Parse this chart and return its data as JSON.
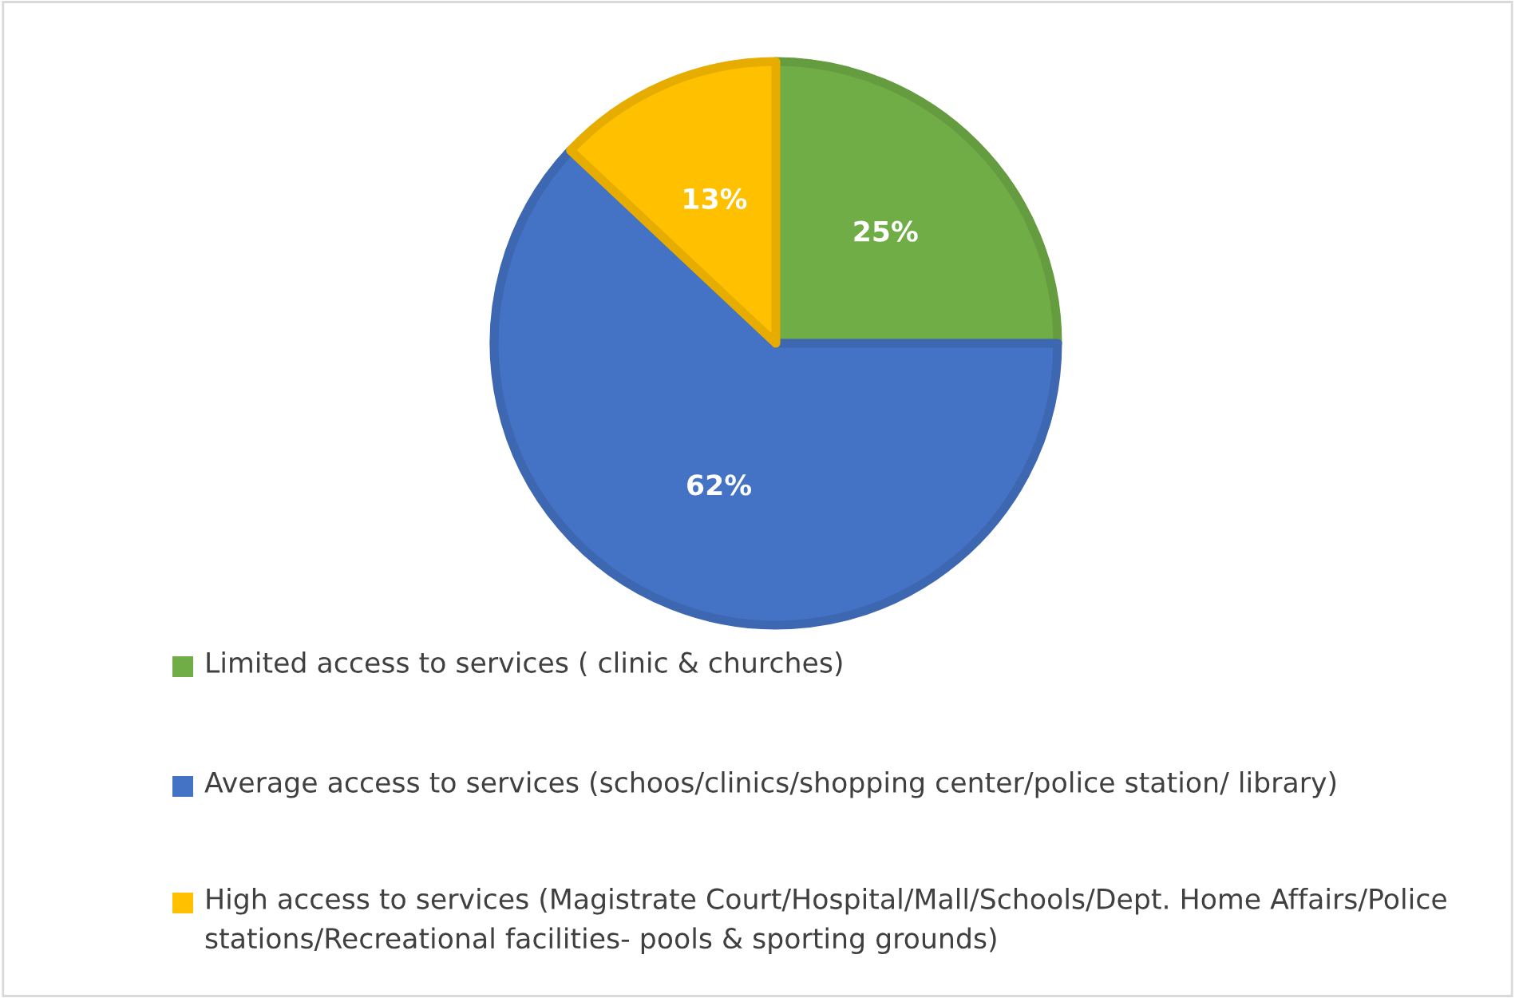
{
  "chart_data": {
    "type": "pie",
    "categories": [
      "Limited access to services ( clinic & churches)",
      "Average access to services (schoos/clinics/shopping center/police station/ library)",
      "High access to services (Magistrate Court/Hospital/Mall/Schools/Dept. Home Affairs/Police stations/Recreational facilities- pools & sporting grounds)"
    ],
    "values": [
      25,
      62,
      13
    ],
    "colors": [
      "#70ad47",
      "#4472c4",
      "#ffc000"
    ],
    "value_labels": [
      "25%",
      "62%",
      "13%"
    ],
    "legend": "bottom"
  }
}
